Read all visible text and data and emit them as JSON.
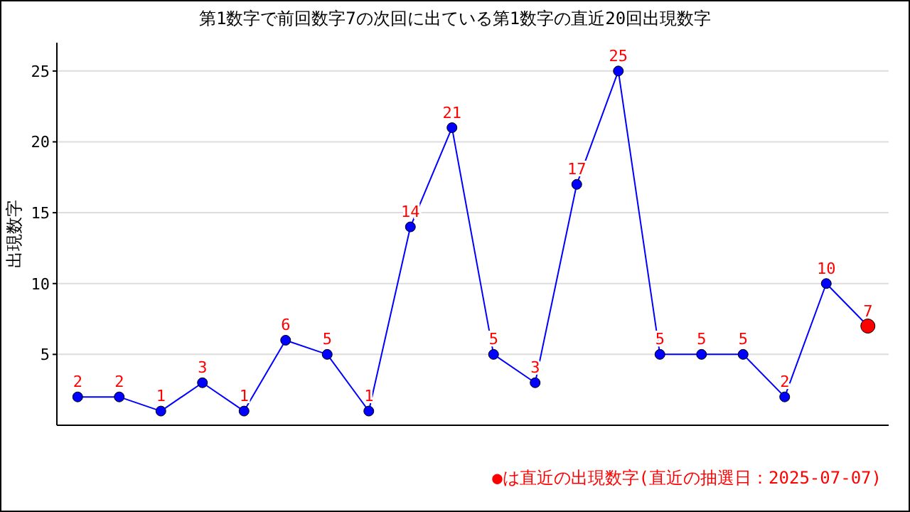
{
  "chart_data": {
    "type": "line",
    "title": "第1数字で前回数字7の次回に出ている第1数字の直近20回出現数字",
    "ylabel": "出現数字",
    "categories": [
      null,
      null,
      null,
      null,
      null,
      null,
      null,
      null,
      null,
      null,
      null,
      null,
      null,
      null,
      null,
      null,
      null,
      null,
      null,
      null
    ],
    "series": [
      {
        "color": "#0000ff",
        "values": [
          2,
          2,
          1,
          3,
          1,
          6,
          5,
          1,
          14,
          21,
          5,
          3,
          17,
          25,
          5,
          5,
          5,
          2,
          10,
          7
        ],
        "colors": [
          "#0000ff",
          "#0000ff",
          "#0000ff",
          "#0000ff",
          "#0000ff",
          "#0000ff",
          "#0000ff",
          "#0000ff",
          "#0000ff",
          "#0000ff",
          "#0000ff",
          "#0000ff",
          "#0000ff",
          "#0000ff",
          "#0000ff",
          "#0000ff",
          "#0000ff",
          "#0000ff",
          "#0000ff",
          "#ff0000"
        ]
      }
    ],
    "ylim": [
      0,
      27
    ],
    "yticks": [
      5,
      10,
      15,
      20,
      25
    ],
    "grid": "y",
    "marker": "circle",
    "line_style": "solid",
    "data_labels": true,
    "annotations": [
      "●は直近の出現数字(直近の抽選日：2025-07-07)"
    ]
  }
}
